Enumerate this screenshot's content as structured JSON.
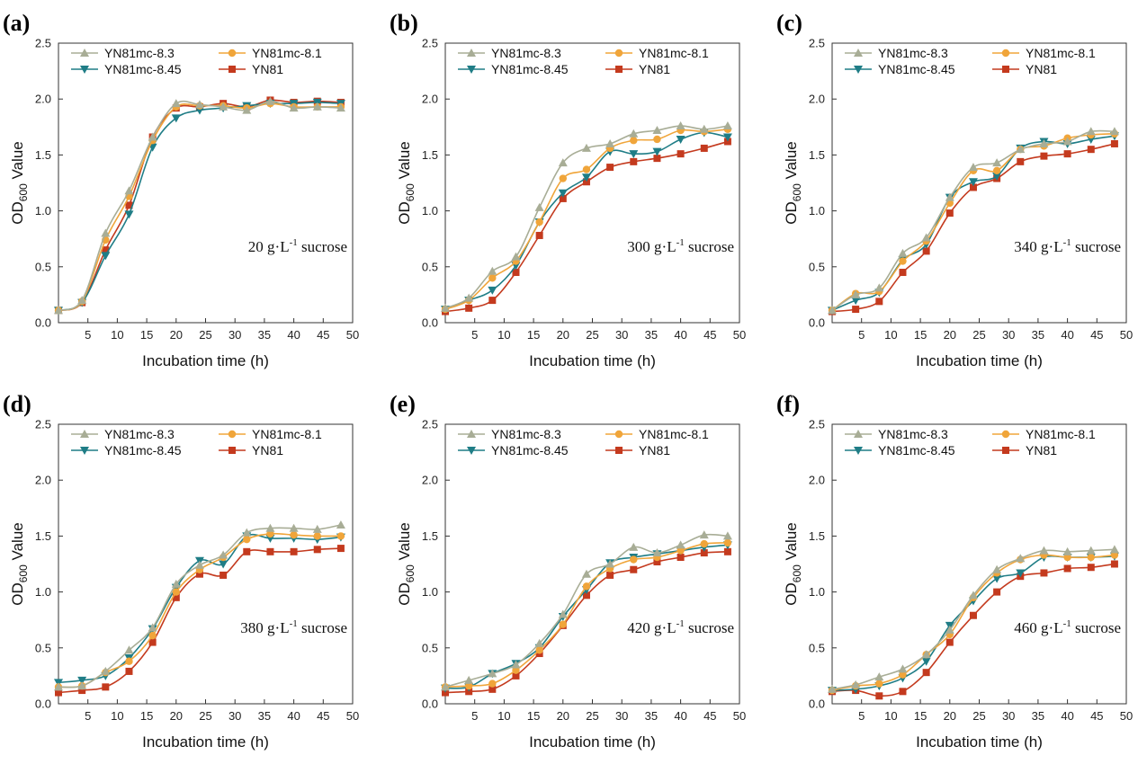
{
  "chart_data": [
    {
      "panel": "(a)",
      "type": "line",
      "annotation": "20 g·L",
      "annotation_sup": "-1",
      "annotation_tail": " sucrose",
      "xlabel": "Incubation time (h)",
      "ylabel": "OD",
      "ylabel_sub": "600",
      "ylabel_tail": " Value",
      "xlim": [
        0,
        50
      ],
      "ylim": [
        0,
        2.5
      ],
      "xticks": [
        "5",
        "10",
        "15",
        "20",
        "25",
        "30",
        "35",
        "40",
        "45",
        "50"
      ],
      "yticks": [
        "0.0",
        "0.5",
        "1.0",
        "1.5",
        "2.0",
        "2.5"
      ],
      "x": [
        0,
        4,
        8,
        12,
        16,
        20,
        24,
        28,
        32,
        36,
        40,
        44,
        48
      ],
      "series": [
        {
          "name": "YN81mc-8.3",
          "values": [
            0.11,
            0.2,
            0.8,
            1.18,
            1.66,
            1.96,
            1.95,
            1.93,
            1.9,
            1.98,
            1.92,
            1.93,
            1.92
          ]
        },
        {
          "name": "YN81mc-8.1",
          "values": [
            0.11,
            0.19,
            0.74,
            1.13,
            1.63,
            1.93,
            1.94,
            1.94,
            1.92,
            1.96,
            1.93,
            1.93,
            1.93
          ]
        },
        {
          "name": "YN81mc-8.45",
          "values": [
            0.11,
            0.18,
            0.6,
            0.97,
            1.57,
            1.83,
            1.9,
            1.92,
            1.94,
            1.96,
            1.96,
            1.97,
            1.96
          ]
        },
        {
          "name": "YN81",
          "values": [
            0.11,
            0.18,
            0.65,
            1.05,
            1.66,
            1.92,
            1.93,
            1.96,
            1.93,
            1.99,
            1.97,
            1.98,
            1.97
          ]
        }
      ]
    },
    {
      "panel": "(b)",
      "type": "line",
      "annotation": "300 g·L",
      "annotation_sup": "-1",
      "annotation_tail": " sucrose",
      "xlabel": "Incubation time (h)",
      "ylabel": "OD",
      "ylabel_sub": "600",
      "ylabel_tail": " Value",
      "xlim": [
        0,
        50
      ],
      "ylim": [
        0,
        2.5
      ],
      "xticks": [
        "5",
        "10",
        "15",
        "20",
        "25",
        "30",
        "35",
        "40",
        "45",
        "50"
      ],
      "yticks": [
        "0.0",
        "0.5",
        "1.0",
        "1.5",
        "2.0",
        "2.5"
      ],
      "x": [
        0,
        4,
        8,
        12,
        16,
        20,
        24,
        28,
        32,
        36,
        40,
        44,
        48
      ],
      "series": [
        {
          "name": "YN81mc-8.3",
          "values": [
            0.13,
            0.22,
            0.46,
            0.59,
            1.03,
            1.43,
            1.56,
            1.6,
            1.69,
            1.72,
            1.76,
            1.73,
            1.76
          ]
        },
        {
          "name": "YN81mc-8.1",
          "values": [
            0.12,
            0.2,
            0.4,
            0.55,
            0.9,
            1.29,
            1.37,
            1.56,
            1.63,
            1.64,
            1.72,
            1.71,
            1.73
          ]
        },
        {
          "name": "YN81mc-8.45",
          "values": [
            0.12,
            0.2,
            0.29,
            0.51,
            0.9,
            1.16,
            1.3,
            1.53,
            1.51,
            1.53,
            1.64,
            1.7,
            1.66
          ]
        },
        {
          "name": "YN81",
          "values": [
            0.1,
            0.13,
            0.2,
            0.45,
            0.78,
            1.11,
            1.26,
            1.39,
            1.44,
            1.47,
            1.51,
            1.56,
            1.62
          ]
        }
      ]
    },
    {
      "panel": "(c)",
      "type": "line",
      "annotation": "340 g·L",
      "annotation_sup": "-1",
      "annotation_tail": " sucrose",
      "xlabel": "Incubation time (h)",
      "ylabel": "OD",
      "ylabel_sub": "600",
      "ylabel_tail": " Value",
      "xlim": [
        0,
        50
      ],
      "ylim": [
        0,
        2.5
      ],
      "xticks": [
        "5",
        "10",
        "15",
        "20",
        "25",
        "30",
        "35",
        "40",
        "45",
        "50"
      ],
      "yticks": [
        "0.0",
        "0.5",
        "1.0",
        "1.5",
        "2.0",
        "2.5"
      ],
      "x": [
        0,
        4,
        8,
        12,
        16,
        20,
        24,
        28,
        32,
        36,
        40,
        44,
        48
      ],
      "series": [
        {
          "name": "YN81mc-8.3",
          "values": [
            0.11,
            0.25,
            0.31,
            0.62,
            0.76,
            1.12,
            1.39,
            1.43,
            1.55,
            1.6,
            1.62,
            1.71,
            1.71
          ]
        },
        {
          "name": "YN81mc-8.1",
          "values": [
            0.11,
            0.26,
            0.28,
            0.55,
            0.73,
            1.07,
            1.36,
            1.36,
            1.55,
            1.58,
            1.65,
            1.68,
            1.69
          ]
        },
        {
          "name": "YN81mc-8.45",
          "values": [
            0.11,
            0.2,
            0.27,
            0.56,
            0.7,
            1.12,
            1.26,
            1.31,
            1.56,
            1.62,
            1.6,
            1.64,
            1.67
          ]
        },
        {
          "name": "YN81",
          "values": [
            0.1,
            0.12,
            0.19,
            0.45,
            0.64,
            0.98,
            1.21,
            1.29,
            1.44,
            1.49,
            1.51,
            1.55,
            1.6
          ]
        }
      ]
    },
    {
      "panel": "(d)",
      "type": "line",
      "annotation": "380 g·L",
      "annotation_sup": "-1",
      "annotation_tail": " sucrose",
      "xlabel": "Incubation time (h)",
      "ylabel": "OD",
      "ylabel_sub": "600",
      "ylabel_tail": " Value",
      "xlim": [
        0,
        50
      ],
      "ylim": [
        0,
        2.5
      ],
      "xticks": [
        "5",
        "10",
        "15",
        "20",
        "25",
        "30",
        "35",
        "40",
        "45",
        "50"
      ],
      "yticks": [
        "0.0",
        "0.5",
        "1.0",
        "1.5",
        "2.0",
        "2.5"
      ],
      "x": [
        0,
        4,
        8,
        12,
        16,
        20,
        24,
        28,
        32,
        36,
        40,
        44,
        48
      ],
      "series": [
        {
          "name": "YN81mc-8.3",
          "values": [
            0.15,
            0.16,
            0.29,
            0.48,
            0.68,
            1.07,
            1.24,
            1.33,
            1.53,
            1.57,
            1.57,
            1.56,
            1.6
          ]
        },
        {
          "name": "YN81mc-8.1",
          "values": [
            0.15,
            0.16,
            0.28,
            0.38,
            0.61,
            1.0,
            1.2,
            1.31,
            1.47,
            1.52,
            1.51,
            1.5,
            1.5
          ]
        },
        {
          "name": "YN81mc-8.45",
          "values": [
            0.19,
            0.21,
            0.25,
            0.41,
            0.67,
            1.04,
            1.28,
            1.25,
            1.5,
            1.48,
            1.48,
            1.47,
            1.49
          ]
        },
        {
          "name": "YN81",
          "values": [
            0.1,
            0.12,
            0.15,
            0.29,
            0.55,
            0.95,
            1.16,
            1.15,
            1.36,
            1.36,
            1.36,
            1.38,
            1.39
          ]
        }
      ]
    },
    {
      "panel": "(e)",
      "type": "line",
      "annotation": "420 g·L",
      "annotation_sup": "-1",
      "annotation_tail": " sucrose",
      "xlabel": "Incubation time (h)",
      "ylabel": "OD",
      "ylabel_sub": "600",
      "ylabel_tail": " Value",
      "xlim": [
        0,
        50
      ],
      "ylim": [
        0,
        2.5
      ],
      "xticks": [
        "5",
        "10",
        "15",
        "20",
        "25",
        "30",
        "35",
        "40",
        "45",
        "50"
      ],
      "yticks": [
        "0.0",
        "0.5",
        "1.0",
        "1.5",
        "2.0",
        "2.5"
      ],
      "x": [
        0,
        4,
        8,
        12,
        16,
        20,
        24,
        28,
        32,
        36,
        40,
        44,
        48
      ],
      "series": [
        {
          "name": "YN81mc-8.3",
          "values": [
            0.15,
            0.21,
            0.27,
            0.35,
            0.54,
            0.8,
            1.16,
            1.25,
            1.4,
            1.35,
            1.42,
            1.51,
            1.5
          ]
        },
        {
          "name": "YN81mc-8.1",
          "values": [
            0.15,
            0.16,
            0.18,
            0.3,
            0.48,
            0.71,
            1.05,
            1.21,
            1.29,
            1.31,
            1.37,
            1.43,
            1.44
          ]
        },
        {
          "name": "YN81mc-8.45",
          "values": [
            0.14,
            0.15,
            0.27,
            0.36,
            0.5,
            0.78,
            1.02,
            1.26,
            1.31,
            1.34,
            1.37,
            1.4,
            1.42
          ]
        },
        {
          "name": "YN81",
          "values": [
            0.1,
            0.11,
            0.13,
            0.25,
            0.45,
            0.7,
            0.97,
            1.15,
            1.2,
            1.27,
            1.31,
            1.35,
            1.36
          ]
        }
      ]
    },
    {
      "panel": "(f)",
      "type": "line",
      "annotation": "460 g·L",
      "annotation_sup": "-1",
      "annotation_tail": " sucrose",
      "xlabel": "Incubation time (h)",
      "ylabel": "OD",
      "ylabel_sub": "600",
      "ylabel_tail": " Value",
      "xlim": [
        0,
        50
      ],
      "ylim": [
        0,
        2.5
      ],
      "xticks": [
        "5",
        "10",
        "15",
        "20",
        "25",
        "30",
        "35",
        "40",
        "45",
        "50"
      ],
      "yticks": [
        "0.0",
        "0.5",
        "1.0",
        "1.5",
        "2.0",
        "2.5"
      ],
      "x": [
        0,
        4,
        8,
        12,
        16,
        20,
        24,
        28,
        32,
        36,
        40,
        44,
        48
      ],
      "series": [
        {
          "name": "YN81mc-8.3",
          "values": [
            0.13,
            0.17,
            0.24,
            0.31,
            0.44,
            0.66,
            0.97,
            1.2,
            1.3,
            1.37,
            1.36,
            1.37,
            1.38
          ]
        },
        {
          "name": "YN81mc-8.1",
          "values": [
            0.12,
            0.16,
            0.18,
            0.26,
            0.44,
            0.62,
            0.95,
            1.17,
            1.29,
            1.33,
            1.31,
            1.31,
            1.33
          ]
        },
        {
          "name": "YN81mc-8.45",
          "values": [
            0.12,
            0.13,
            0.16,
            0.23,
            0.38,
            0.7,
            0.92,
            1.12,
            1.17,
            1.31,
            1.31,
            1.31,
            1.32
          ]
        },
        {
          "name": "YN81",
          "values": [
            0.11,
            0.12,
            0.07,
            0.11,
            0.28,
            0.55,
            0.79,
            1.0,
            1.14,
            1.17,
            1.21,
            1.22,
            1.25
          ]
        }
      ]
    }
  ],
  "series_style": [
    {
      "name": "YN81mc-8.3",
      "color": "#a8ad96",
      "marker": "triangle-up"
    },
    {
      "name": "YN81mc-8.1",
      "color": "#f0a53a",
      "marker": "circle"
    },
    {
      "name": "YN81mc-8.45",
      "color": "#1f7d86",
      "marker": "triangle-down"
    },
    {
      "name": "YN81",
      "color": "#c43a1e",
      "marker": "square"
    }
  ]
}
